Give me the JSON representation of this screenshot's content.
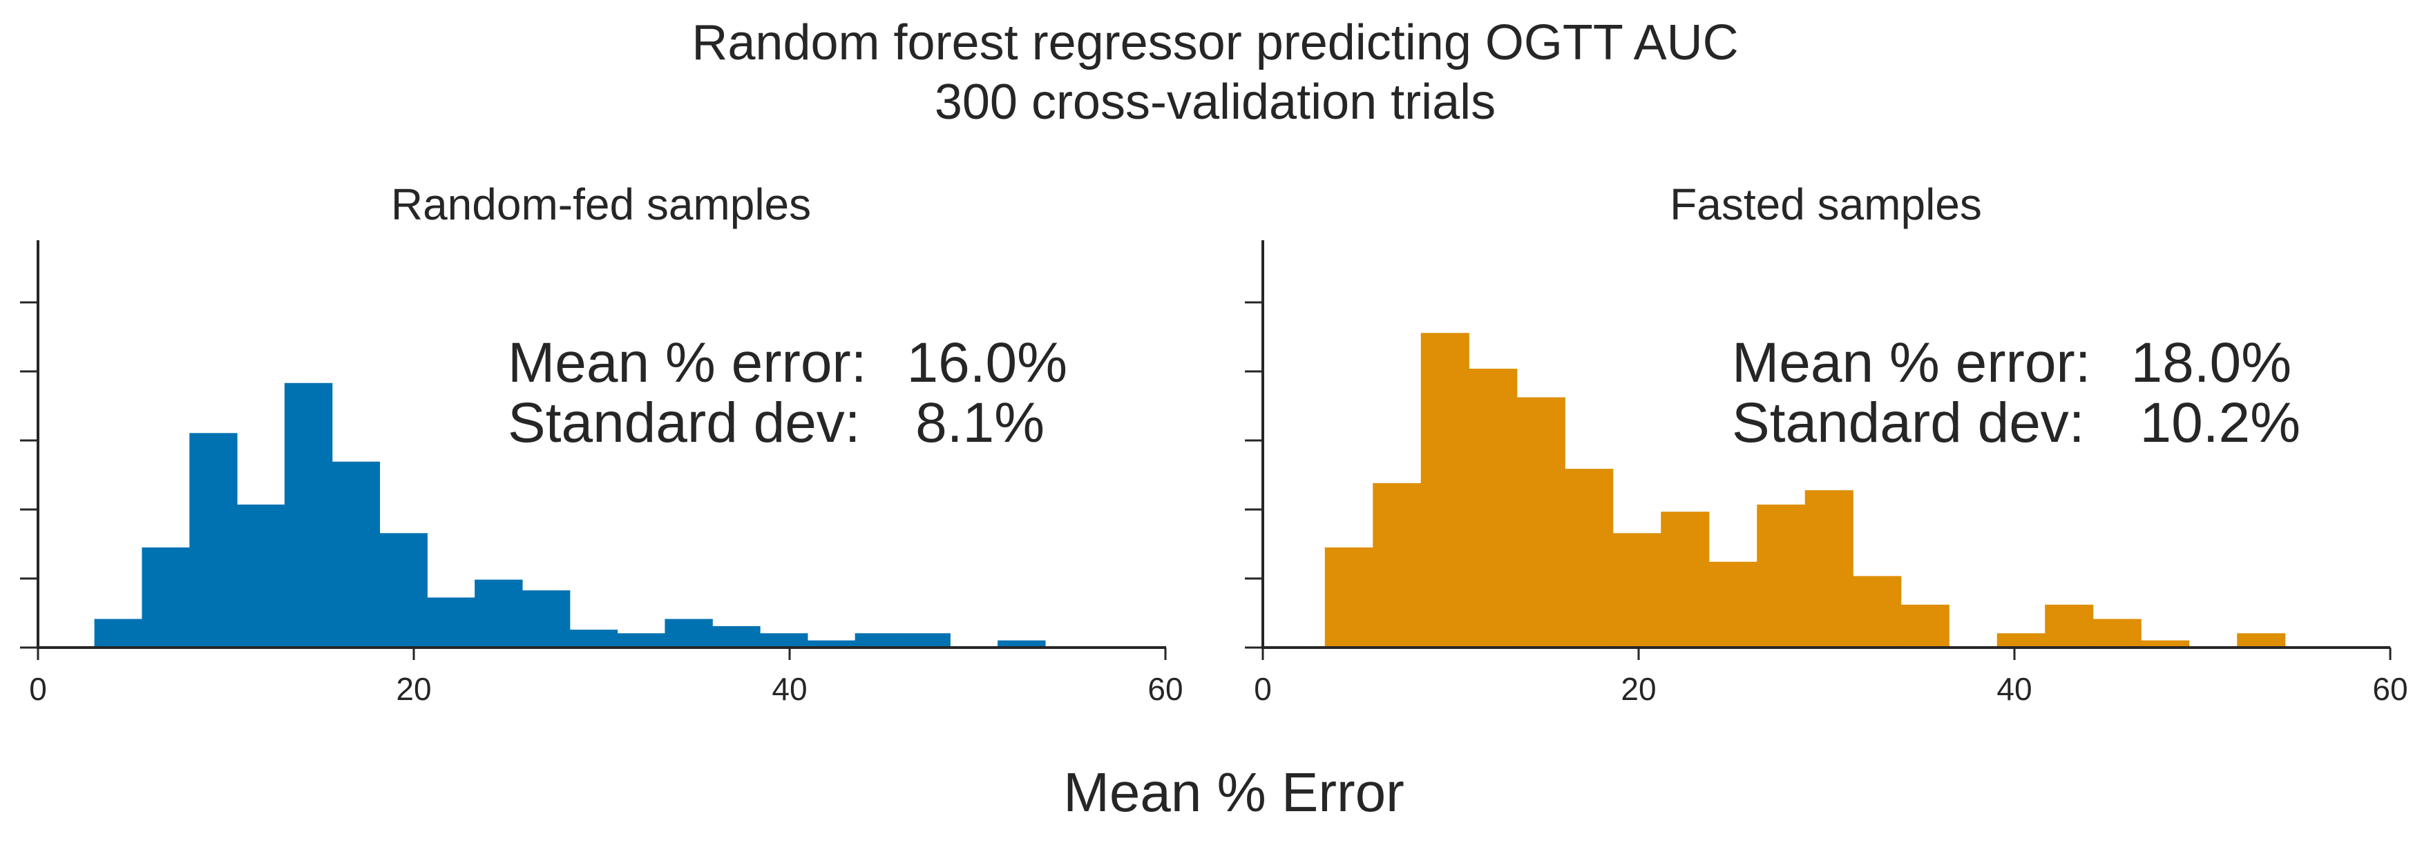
{
  "figure": {
    "title_line1": "Random forest regressor predicting OGTT AUC",
    "title_line2": "300 cross-validation trials",
    "xlabel": "Mean % Error"
  },
  "chart_data": [
    {
      "type": "bar",
      "title": "Random-fed samples",
      "xlabel": "",
      "ylabel": "",
      "color": "#0072B2",
      "xlim": [
        0,
        60
      ],
      "xticks": [
        0,
        20,
        40,
        60
      ],
      "ylim": [
        0,
        56
      ],
      "bin_width": 2.53,
      "bin_starts": [
        3.0,
        5.53,
        8.06,
        10.59,
        13.12,
        15.65,
        18.18,
        20.71,
        23.24,
        25.77,
        28.3,
        30.83,
        33.36,
        35.89,
        38.42,
        40.95,
        43.48,
        46.01,
        48.54,
        51.07
      ],
      "values": [
        4,
        14,
        30,
        20,
        37,
        26,
        16,
        7,
        9.5,
        8,
        2.5,
        2,
        4,
        3,
        2,
        1,
        2,
        2,
        0,
        1
      ],
      "stats": {
        "mean_label": "Mean % error:",
        "mean_value": "16.0%",
        "sd_label": "Standard dev:",
        "sd_value": "8.1%"
      }
    },
    {
      "type": "bar",
      "title": "Fasted samples",
      "xlabel": "",
      "ylabel": "",
      "color": "#DE8F05",
      "xlim": [
        0,
        60
      ],
      "xticks": [
        0,
        20,
        40,
        60
      ],
      "ylim": [
        0,
        56
      ],
      "bin_width": 2.555,
      "bin_starts": [
        3.3,
        5.855,
        8.41,
        10.965,
        13.52,
        16.075,
        18.63,
        21.185,
        23.74,
        26.295,
        28.85,
        31.405,
        33.96,
        36.515,
        39.07,
        41.625,
        44.18,
        46.735,
        49.29,
        51.845
      ],
      "values": [
        14,
        23,
        44,
        39,
        35,
        25,
        16,
        19,
        12,
        20,
        22,
        10,
        6,
        0,
        2,
        6,
        4,
        1,
        0,
        2
      ],
      "stats": {
        "mean_label": "Mean % error:",
        "mean_value": "18.0%",
        "sd_label": "Standard dev:",
        "sd_value": "10.2%"
      }
    }
  ]
}
